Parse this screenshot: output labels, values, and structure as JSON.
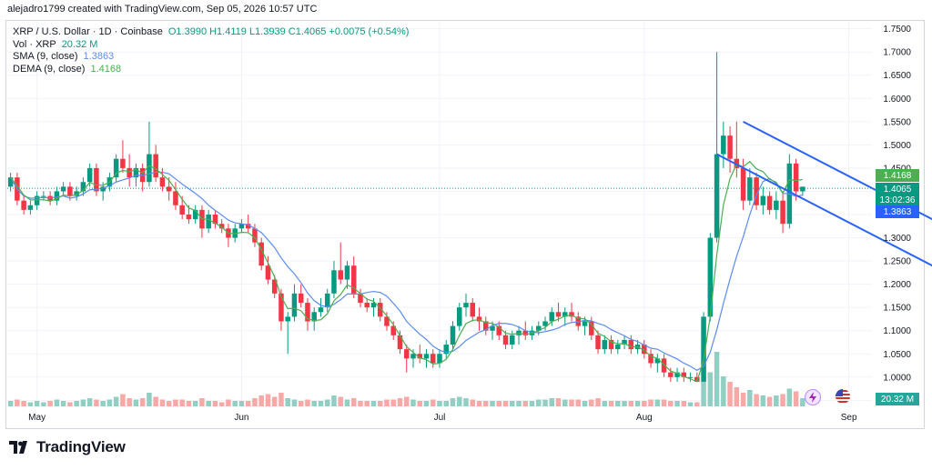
{
  "caption": "alejadro1799 created with TradingView.com, Sep 05, 2026 10:57 UTC",
  "legend": {
    "title": "XRP / U.S. Dollar · 1D · Coinbase",
    "ohlc": "O1.3990 H1.4119 L1.3939 C1.4065 +0.0075 (+0.54%)",
    "vol_label": "Vol · XRP",
    "vol_value": "20.32 M",
    "sma_label": "SMA (9, close)",
    "sma_value": "1.3863",
    "dema_label": "DEMA (9, close)",
    "dema_value": "1.4168"
  },
  "badges": {
    "dema": "1.4168",
    "last": "1.4065",
    "countdown": "13:02:36",
    "sma": "1.3863",
    "volume": "20.32 M"
  },
  "logo_text": "TradingView",
  "colors": {
    "up": "#089981",
    "down": "#f23645",
    "up_volume": "#91cfc3",
    "down_volume": "#f7a9a7",
    "sma": "#5b8def",
    "dema": "#4caf50",
    "trendline": "#2962ff",
    "price_line": "#089981"
  },
  "chart_data": {
    "type": "candlestick",
    "symbol": "XRP / U.S. Dollar",
    "interval": "1D",
    "exchange": "Coinbase",
    "y_axis_ticks": [
      "1.7500",
      "1.7000",
      "1.6500",
      "1.6000",
      "1.5500",
      "1.5000",
      "1.4500",
      "1.4000",
      "1.3500",
      "1.3000",
      "1.2500",
      "1.2000",
      "1.1500",
      "1.1000",
      "1.0500",
      "1.0000",
      "0.9500"
    ],
    "ylim": [
      0.935,
      1.765
    ],
    "x_axis_labels": [
      "May",
      "Jun",
      "Jul",
      "Aug",
      "Sep"
    ],
    "x_axis_label_index": [
      4,
      35,
      65,
      96,
      127
    ],
    "grid": true,
    "candles": [
      [
        1.41,
        1.44,
        1.4,
        1.43
      ],
      [
        1.43,
        1.44,
        1.37,
        1.38
      ],
      [
        1.38,
        1.39,
        1.35,
        1.36
      ],
      [
        1.36,
        1.38,
        1.35,
        1.37
      ],
      [
        1.37,
        1.4,
        1.36,
        1.39
      ],
      [
        1.39,
        1.4,
        1.38,
        1.39
      ],
      [
        1.39,
        1.4,
        1.37,
        1.38
      ],
      [
        1.38,
        1.41,
        1.37,
        1.4
      ],
      [
        1.4,
        1.42,
        1.39,
        1.41
      ],
      [
        1.41,
        1.42,
        1.38,
        1.39
      ],
      [
        1.39,
        1.41,
        1.38,
        1.4
      ],
      [
        1.4,
        1.43,
        1.39,
        1.42
      ],
      [
        1.42,
        1.46,
        1.41,
        1.45
      ],
      [
        1.45,
        1.46,
        1.39,
        1.4
      ],
      [
        1.4,
        1.42,
        1.38,
        1.41
      ],
      [
        1.41,
        1.44,
        1.4,
        1.43
      ],
      [
        1.43,
        1.48,
        1.42,
        1.47
      ],
      [
        1.47,
        1.51,
        1.44,
        1.45
      ],
      [
        1.45,
        1.48,
        1.41,
        1.43
      ],
      [
        1.43,
        1.46,
        1.41,
        1.45
      ],
      [
        1.45,
        1.46,
        1.4,
        1.42
      ],
      [
        1.42,
        1.55,
        1.41,
        1.48
      ],
      [
        1.48,
        1.5,
        1.42,
        1.43
      ],
      [
        1.43,
        1.45,
        1.4,
        1.41
      ],
      [
        1.41,
        1.43,
        1.38,
        1.4
      ],
      [
        1.4,
        1.42,
        1.36,
        1.37
      ],
      [
        1.37,
        1.39,
        1.34,
        1.35
      ],
      [
        1.35,
        1.37,
        1.33,
        1.34
      ],
      [
        1.34,
        1.37,
        1.33,
        1.36
      ],
      [
        1.36,
        1.37,
        1.3,
        1.32
      ],
      [
        1.32,
        1.36,
        1.31,
        1.35
      ],
      [
        1.35,
        1.36,
        1.32,
        1.33
      ],
      [
        1.33,
        1.34,
        1.31,
        1.32
      ],
      [
        1.32,
        1.33,
        1.28,
        1.3
      ],
      [
        1.3,
        1.33,
        1.29,
        1.32
      ],
      [
        1.32,
        1.34,
        1.31,
        1.33
      ],
      [
        1.33,
        1.35,
        1.31,
        1.32
      ],
      [
        1.32,
        1.33,
        1.28,
        1.29
      ],
      [
        1.29,
        1.3,
        1.23,
        1.24
      ],
      [
        1.24,
        1.26,
        1.2,
        1.21
      ],
      [
        1.21,
        1.22,
        1.17,
        1.18
      ],
      [
        1.18,
        1.19,
        1.1,
        1.12
      ],
      [
        1.12,
        1.14,
        1.05,
        1.13
      ],
      [
        1.13,
        1.2,
        1.12,
        1.18
      ],
      [
        1.18,
        1.2,
        1.15,
        1.16
      ],
      [
        1.16,
        1.17,
        1.1,
        1.12
      ],
      [
        1.12,
        1.15,
        1.1,
        1.14
      ],
      [
        1.14,
        1.17,
        1.13,
        1.15
      ],
      [
        1.15,
        1.19,
        1.14,
        1.18
      ],
      [
        1.18,
        1.25,
        1.17,
        1.23
      ],
      [
        1.23,
        1.29,
        1.2,
        1.21
      ],
      [
        1.21,
        1.25,
        1.19,
        1.24
      ],
      [
        1.24,
        1.26,
        1.17,
        1.18
      ],
      [
        1.18,
        1.19,
        1.15,
        1.16
      ],
      [
        1.16,
        1.17,
        1.14,
        1.15
      ],
      [
        1.15,
        1.17,
        1.13,
        1.16
      ],
      [
        1.16,
        1.17,
        1.12,
        1.13
      ],
      [
        1.13,
        1.14,
        1.1,
        1.11
      ],
      [
        1.11,
        1.12,
        1.08,
        1.09
      ],
      [
        1.09,
        1.1,
        1.05,
        1.06
      ],
      [
        1.06,
        1.07,
        1.01,
        1.04
      ],
      [
        1.04,
        1.06,
        1.02,
        1.05
      ],
      [
        1.05,
        1.07,
        1.03,
        1.04
      ],
      [
        1.04,
        1.06,
        1.02,
        1.05
      ],
      [
        1.05,
        1.06,
        1.02,
        1.03
      ],
      [
        1.03,
        1.06,
        1.02,
        1.05
      ],
      [
        1.05,
        1.08,
        1.04,
        1.07
      ],
      [
        1.07,
        1.12,
        1.06,
        1.11
      ],
      [
        1.11,
        1.16,
        1.1,
        1.15
      ],
      [
        1.15,
        1.18,
        1.13,
        1.16
      ],
      [
        1.16,
        1.17,
        1.12,
        1.13
      ],
      [
        1.13,
        1.15,
        1.1,
        1.12
      ],
      [
        1.12,
        1.13,
        1.09,
        1.1
      ],
      [
        1.1,
        1.12,
        1.08,
        1.11
      ],
      [
        1.11,
        1.12,
        1.08,
        1.09
      ],
      [
        1.09,
        1.1,
        1.06,
        1.07
      ],
      [
        1.07,
        1.1,
        1.06,
        1.09
      ],
      [
        1.09,
        1.11,
        1.07,
        1.1
      ],
      [
        1.1,
        1.12,
        1.08,
        1.09
      ],
      [
        1.09,
        1.11,
        1.08,
        1.1
      ],
      [
        1.1,
        1.12,
        1.09,
        1.11
      ],
      [
        1.11,
        1.13,
        1.1,
        1.12
      ],
      [
        1.12,
        1.15,
        1.11,
        1.14
      ],
      [
        1.14,
        1.16,
        1.12,
        1.13
      ],
      [
        1.13,
        1.15,
        1.11,
        1.14
      ],
      [
        1.14,
        1.16,
        1.12,
        1.13
      ],
      [
        1.13,
        1.14,
        1.1,
        1.11
      ],
      [
        1.11,
        1.13,
        1.09,
        1.12
      ],
      [
        1.12,
        1.13,
        1.08,
        1.09
      ],
      [
        1.09,
        1.1,
        1.05,
        1.06
      ],
      [
        1.06,
        1.09,
        1.05,
        1.08
      ],
      [
        1.08,
        1.09,
        1.05,
        1.06
      ],
      [
        1.06,
        1.08,
        1.05,
        1.07
      ],
      [
        1.07,
        1.09,
        1.06,
        1.08
      ],
      [
        1.08,
        1.09,
        1.05,
        1.06
      ],
      [
        1.06,
        1.08,
        1.05,
        1.07
      ],
      [
        1.07,
        1.08,
        1.04,
        1.05
      ],
      [
        1.05,
        1.06,
        1.02,
        1.03
      ],
      [
        1.03,
        1.05,
        1.01,
        1.04
      ],
      [
        1.04,
        1.05,
        1.0,
        1.01
      ],
      [
        1.01,
        1.02,
        0.99,
        1.0
      ],
      [
        1.0,
        1.02,
        0.99,
        1.01
      ],
      [
        1.01,
        1.02,
        0.99,
        1.0
      ],
      [
        1.0,
        1.01,
        0.99,
        1.0
      ],
      [
        1.0,
        1.01,
        0.99,
        0.99
      ],
      [
        0.99,
        1.14,
        0.99,
        1.13
      ],
      [
        1.13,
        1.31,
        1.12,
        1.3
      ],
      [
        1.3,
        1.7,
        1.29,
        1.48
      ],
      [
        1.48,
        1.55,
        1.45,
        1.52
      ],
      [
        1.52,
        1.54,
        1.44,
        1.47
      ],
      [
        1.47,
        1.55,
        1.43,
        1.45
      ],
      [
        1.45,
        1.47,
        1.36,
        1.38
      ],
      [
        1.38,
        1.45,
        1.37,
        1.43
      ],
      [
        1.43,
        1.44,
        1.36,
        1.37
      ],
      [
        1.37,
        1.41,
        1.35,
        1.39
      ],
      [
        1.39,
        1.4,
        1.35,
        1.36
      ],
      [
        1.36,
        1.4,
        1.34,
        1.38
      ],
      [
        1.38,
        1.4,
        1.31,
        1.33
      ],
      [
        1.33,
        1.48,
        1.32,
        1.46
      ],
      [
        1.46,
        1.47,
        1.38,
        1.4
      ],
      [
        1.4,
        1.41,
        1.39,
        1.41
      ]
    ],
    "volume": [
      4,
      5,
      4,
      3,
      4,
      3,
      4,
      5,
      4,
      3,
      4,
      5,
      6,
      5,
      4,
      5,
      7,
      9,
      6,
      5,
      6,
      10,
      7,
      5,
      4,
      5,
      5,
      4,
      4,
      6,
      4,
      4,
      3,
      5,
      4,
      4,
      4,
      6,
      8,
      9,
      7,
      10,
      6,
      5,
      4,
      5,
      4,
      4,
      5,
      8,
      7,
      5,
      6,
      4,
      4,
      4,
      4,
      5,
      5,
      6,
      7,
      5,
      4,
      4,
      5,
      4,
      4,
      6,
      7,
      6,
      5,
      4,
      4,
      4,
      4,
      4,
      4,
      4,
      4,
      4,
      5,
      5,
      6,
      6,
      5,
      5,
      5,
      4,
      5,
      6,
      4,
      4,
      4,
      4,
      4,
      4,
      4,
      5,
      5,
      5,
      4,
      4,
      4,
      3,
      3,
      18,
      25,
      40,
      22,
      18,
      14,
      10,
      12,
      9,
      8,
      7,
      8,
      9,
      13,
      11,
      6
    ],
    "sma9_last": 1.3863,
    "dema9_last": 1.4168,
    "last_price": 1.4065,
    "trendlines": [
      {
        "from": [
          111,
          1.55
        ],
        "to": [
          141,
          1.33
        ]
      },
      {
        "from": [
          107,
          1.48
        ],
        "to": [
          141,
          1.23
        ]
      }
    ]
  }
}
